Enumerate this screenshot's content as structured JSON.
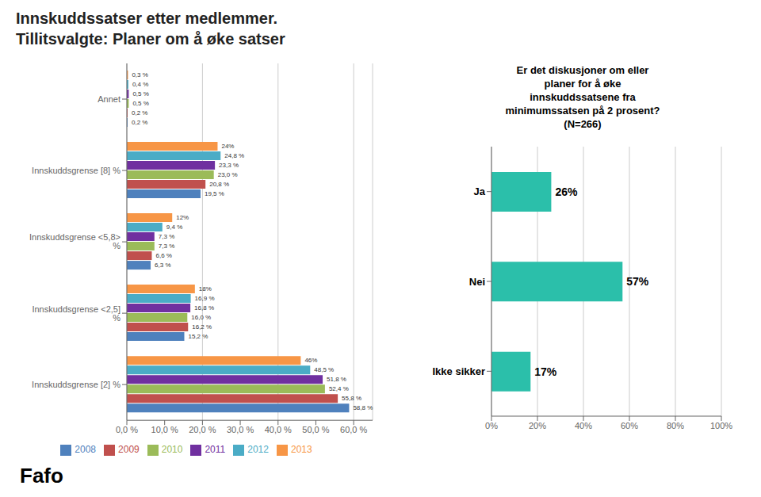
{
  "chart_data": [
    {
      "type": "bar",
      "title": "Innskuddssatser etter medlemmer.",
      "subtitle": "Tillitsvalgte: Planer om å øke satser",
      "annotations": [
        "Fafo"
      ],
      "orientation": "horizontal",
      "categories": [
        "Innskuddsgrense [2] %",
        "Innskuddsgrense <2,5] %",
        "Innskuddsgrense <5,8> %",
        "Innskuddsgrense [8] %",
        "Annet"
      ],
      "series": [
        {
          "name": "2013",
          "color": "#f79646",
          "values": [
            46.0,
            18.0,
            12.0,
            24.0,
            0.3
          ],
          "value_labels": [
            "46%",
            "18%",
            "12%",
            "24%",
            "0,3 %"
          ]
        },
        {
          "name": "2012",
          "color": "#4bacc6",
          "values": [
            48.5,
            16.9,
            9.4,
            24.8,
            0.4
          ],
          "value_labels": [
            "48,5 %",
            "16,9 %",
            "9,4 %",
            "24,8 %",
            "0,4 %"
          ]
        },
        {
          "name": "2011",
          "color": "#7030a0",
          "values": [
            51.8,
            16.8,
            7.3,
            23.3,
            0.5
          ],
          "value_labels": [
            "51,8 %",
            "16,8 %",
            "7,3 %",
            "23,3 %",
            "0,5 %"
          ]
        },
        {
          "name": "2010",
          "color": "#9bbb59",
          "values": [
            52.4,
            16.0,
            7.3,
            23.0,
            0.5
          ],
          "value_labels": [
            "52,4 %",
            "16,0 %",
            "7,3 %",
            "23,0 %",
            "0,5 %"
          ]
        },
        {
          "name": "2009",
          "color": "#c0504d",
          "values": [
            55.8,
            16.2,
            6.6,
            20.8,
            0.2
          ],
          "value_labels": [
            "55,8 %",
            "16,2 %",
            "6,6 %",
            "20,8 %",
            "0,2 %"
          ]
        },
        {
          "name": "2008",
          "color": "#4f81bd",
          "values": [
            58.8,
            15.2,
            6.3,
            19.5,
            0.2
          ],
          "value_labels": [
            "58,8 %",
            "15,2 %",
            "6,3 %",
            "19,5 %",
            "0,2 %"
          ]
        }
      ],
      "xlim": [
        0,
        65
      ],
      "xticks": [
        {
          "value": 0,
          "label": "0,0 %"
        },
        {
          "value": 10,
          "label": "10,0 %"
        },
        {
          "value": 20,
          "label": "20,0 %"
        },
        {
          "value": 30,
          "label": "30,0 %"
        },
        {
          "value": 40,
          "label": "40,0 %"
        },
        {
          "value": 50,
          "label": "50,0 %"
        },
        {
          "value": 60,
          "label": "60,0 %"
        }
      ],
      "grid": true,
      "legend": "bottom",
      "data_labels": true
    },
    {
      "type": "bar",
      "title": "Er det diskusjoner om eller\nplaner for å øke\ninnskuddssatsene fra\nminimumssatsen på 2 prosent?\n(N=266)",
      "orientation": "horizontal",
      "categories": [
        "Ja",
        "Nei",
        "Ikke sikker"
      ],
      "values": [
        26,
        57,
        17
      ],
      "value_labels": [
        "26%",
        "57%",
        "17%"
      ],
      "color": "#2bbfaa",
      "xlim": [
        0,
        100
      ],
      "xticks": [
        {
          "value": 0,
          "label": "0%"
        },
        {
          "value": 20,
          "label": "20%"
        },
        {
          "value": 40,
          "label": "40%"
        },
        {
          "value": 60,
          "label": "60%"
        },
        {
          "value": 80,
          "label": "80%"
        },
        {
          "value": 100,
          "label": "100%"
        }
      ],
      "grid": true,
      "data_labels": true
    }
  ]
}
